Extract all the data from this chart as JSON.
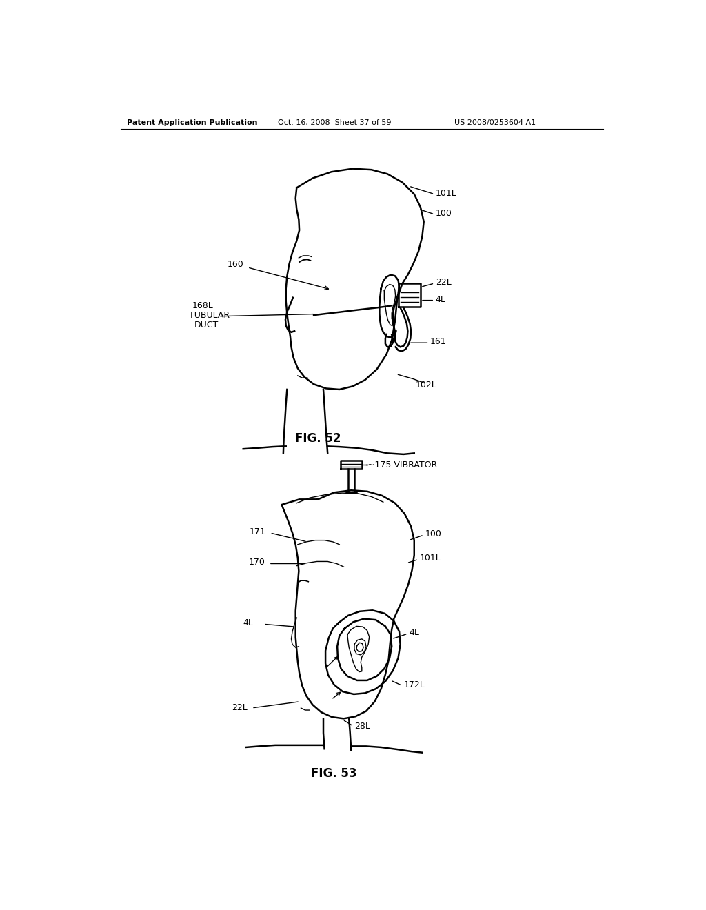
{
  "background_color": "#ffffff",
  "header_left": "Patent Application Publication",
  "header_mid": "Oct. 16, 2008  Sheet 37 of 59",
  "header_right": "US 2008/0253604 A1",
  "fig52_caption": "FIG. 52",
  "fig53_caption": "FIG. 53",
  "line_color": "#000000",
  "text_color": "#000000",
  "lw_main": 1.8,
  "lw_thin": 1.0
}
